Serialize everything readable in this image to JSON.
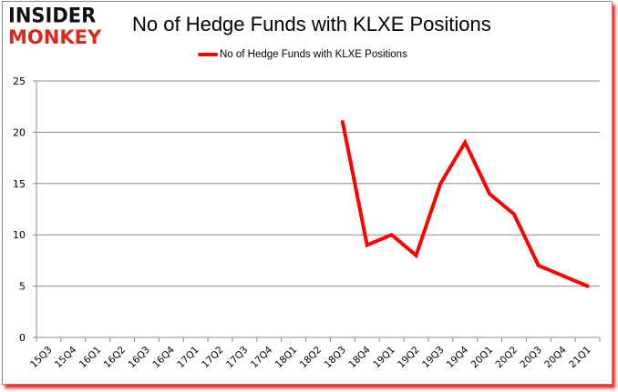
{
  "logo": {
    "line1": "INSIDER",
    "line2": "MONKEY"
  },
  "header": {
    "title": "No of Hedge Funds with KLXE Positions"
  },
  "legend": {
    "label": "No of Hedge Funds with KLXE Positions",
    "color": "#ff0000"
  },
  "chart_data": {
    "type": "line",
    "title": "No of Hedge Funds with KLXE Positions",
    "xlabel": "",
    "ylabel": "",
    "ylim": [
      0,
      25
    ],
    "yticks": [
      0,
      5,
      10,
      15,
      20,
      25
    ],
    "grid": true,
    "legend_position": "top",
    "categories": [
      "15Q3",
      "15Q4",
      "16Q1",
      "16Q2",
      "16Q3",
      "16Q4",
      "17Q1",
      "17Q2",
      "17Q3",
      "17Q4",
      "18Q1",
      "18Q2",
      "18Q3",
      "18Q4",
      "19Q1",
      "19Q2",
      "19Q3",
      "19Q4",
      "20Q1",
      "20Q2",
      "20Q3",
      "20Q4",
      "21Q1"
    ],
    "series": [
      {
        "name": "No of Hedge Funds with KLXE Positions",
        "color": "#ff0000",
        "values": [
          null,
          null,
          null,
          null,
          null,
          null,
          null,
          null,
          null,
          null,
          null,
          null,
          21,
          9,
          10,
          8,
          15,
          19,
          14,
          12,
          7,
          6,
          5
        ]
      }
    ]
  }
}
